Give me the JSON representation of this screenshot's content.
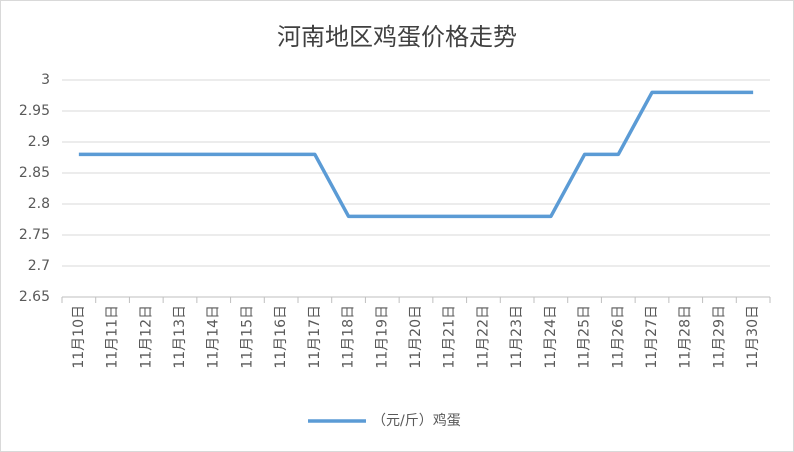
{
  "chart_data": {
    "type": "line",
    "title": "河南地区鸡蛋价格走势",
    "categories": [
      "11月10日",
      "11月11日",
      "11月12日",
      "11月13日",
      "11月14日",
      "11月15日",
      "11月16日",
      "11月17日",
      "11月18日",
      "11月19日",
      "11月20日",
      "11月21日",
      "11月22日",
      "11月23日",
      "11月24日",
      "11月25日",
      "11月26日",
      "11月27日",
      "11月28日",
      "11月29日",
      "11月30日"
    ],
    "series": [
      {
        "name": "（元/斤）鸡蛋",
        "color": "#5b9bd5",
        "values": [
          2.88,
          2.88,
          2.88,
          2.88,
          2.88,
          2.88,
          2.88,
          2.88,
          2.78,
          2.78,
          2.78,
          2.78,
          2.78,
          2.78,
          2.78,
          2.88,
          2.88,
          2.98,
          2.98,
          2.98,
          2.98
        ]
      }
    ],
    "ylim": [
      2.65,
      3
    ],
    "yticks": [
      2.65,
      2.7,
      2.75,
      2.8,
      2.85,
      2.9,
      2.95,
      3
    ],
    "grid": true,
    "legend": "bottom"
  }
}
